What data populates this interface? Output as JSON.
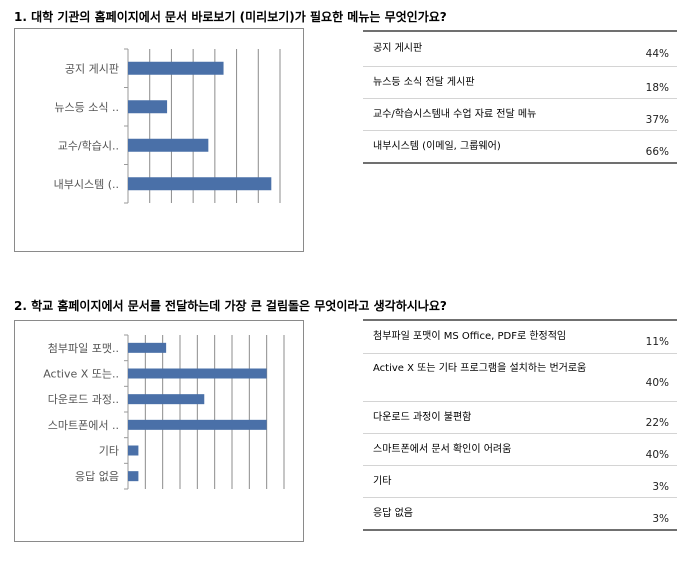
{
  "q1": {
    "title": "1. 대학 기관의 홈페이지에서 문서 바로보기 (미리보기)가 필요한 메뉴는 무엇인가요?",
    "rows": [
      {
        "label": "공지 게시판",
        "pct": "44%"
      },
      {
        "label": "뉴스등 소식 전달 게시판",
        "pct": "18%"
      },
      {
        "label": "교수/학습시스템내 수업 자료 전달 메뉴",
        "pct": "37%"
      },
      {
        "label": "내부시스템 (이메일, 그룹웨어)",
        "pct": "66%"
      }
    ]
  },
  "q2": {
    "title": "2. 학교 홈페이지에서 문서를 전달하는데 가장 큰 걸림돌은 무엇이라고 생각하시나요?",
    "rows": [
      {
        "label": "첨부파일 포맷이 MS Office, PDF로 한정적임",
        "pct": "11%"
      },
      {
        "label": "Active X 또는 기타 프로그램을 설치하는 번거로움",
        "pct": "40%"
      },
      {
        "label": "다운로드 과정이 불편함",
        "pct": "22%"
      },
      {
        "label": "스마트폰에서 문서 확인이 어려움",
        "pct": "40%"
      },
      {
        "label": "기타",
        "pct": "3%"
      },
      {
        "label": "응답 없음",
        "pct": "3%"
      }
    ]
  },
  "chart_data": [
    {
      "type": "bar",
      "orientation": "horizontal",
      "categories": [
        "공지 게시판",
        "뉴스등 소식 ..",
        "교수/학습시..",
        "내부시스템 (.."
      ],
      "values": [
        44,
        18,
        37,
        66
      ],
      "ylim": [
        0,
        70
      ],
      "grid": true,
      "color": "#4a70a8"
    },
    {
      "type": "bar",
      "orientation": "horizontal",
      "categories": [
        "첨부파일 포맷..",
        "Active X 또는..",
        "다운로드 과정..",
        "스마트폰에서 ..",
        "기타",
        "응답 없음"
      ],
      "values": [
        11,
        40,
        22,
        40,
        3,
        3
      ],
      "ylim": [
        0,
        45
      ],
      "grid": true,
      "color": "#4a70a8"
    }
  ]
}
